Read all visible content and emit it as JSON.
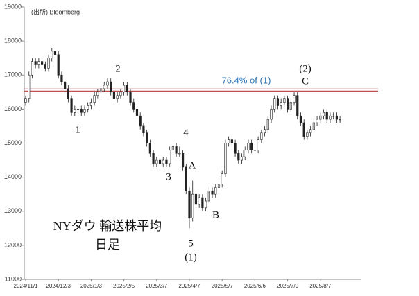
{
  "chart_data": {
    "type": "candlestick",
    "title": "NYダウ 輸送株平均",
    "subtitle": "日足",
    "source": "(出所) Bloomberg",
    "categories": [
      "2024/11/1",
      null,
      null,
      null,
      null,
      null,
      null,
      null,
      null,
      null,
      "2024/12/3",
      null,
      null,
      null,
      null,
      null,
      null,
      null,
      null,
      null,
      "2025/1/3",
      null,
      null,
      null,
      null,
      null,
      null,
      null,
      null,
      null,
      "2025/2/5",
      null,
      null,
      null,
      null,
      null,
      null,
      null,
      null,
      null,
      "2025/3/7",
      null,
      null,
      null,
      null,
      null,
      null,
      null,
      null,
      null,
      "2025/4/7",
      null,
      null,
      null,
      null,
      null,
      null,
      null,
      null,
      null,
      "2025/5/7",
      null,
      null,
      null,
      null,
      null,
      null,
      null,
      null,
      null,
      "2025/6/6",
      null,
      null,
      null,
      null,
      null,
      null,
      null,
      null,
      null,
      "2025/7/9",
      null,
      null,
      null,
      null,
      null,
      null,
      null,
      null,
      null,
      "2025/8/7",
      null,
      null,
      null,
      null,
      null,
      null
    ],
    "open": [
      16200,
      16300,
      17000,
      17400,
      17300,
      17400,
      17300,
      17200,
      17500,
      17700,
      17600,
      17000,
      16800,
      16600,
      16300,
      15900,
      16000,
      16000,
      15900,
      16000,
      16100,
      16200,
      16400,
      16500,
      16600,
      16700,
      16800,
      16500,
      16300,
      16400,
      16500,
      16700,
      16500,
      16200,
      16000,
      15800,
      15500,
      15300,
      15000,
      14700,
      14400,
      14500,
      14400,
      14500,
      14400,
      14800,
      14900,
      14700,
      14700,
      14300,
      13600,
      12800,
      13500,
      13200,
      13400,
      13100,
      13300,
      13600,
      13500,
      13700,
      13800,
      14100,
      15000,
      15100,
      15000,
      14700,
      14500,
      14600,
      14800,
      15000,
      14800,
      14800,
      15100,
      15300,
      15400,
      15700,
      16000,
      16300,
      16100,
      16200,
      16300,
      16000,
      16200,
      16400,
      15800,
      15600,
      15200,
      15300,
      15400,
      15600,
      15700,
      15800,
      15900,
      15700,
      15800,
      15800,
      15700
    ],
    "high": [
      16400,
      17100,
      17500,
      17500,
      17500,
      17500,
      17400,
      17600,
      17800,
      17800,
      17700,
      17100,
      16900,
      16700,
      16400,
      16100,
      16100,
      16100,
      16100,
      16200,
      16300,
      16500,
      16600,
      16700,
      16800,
      16900,
      16900,
      16600,
      16500,
      16600,
      16800,
      16800,
      16600,
      16300,
      16100,
      15900,
      15600,
      15400,
      15100,
      14800,
      14600,
      14600,
      14600,
      14600,
      14900,
      15000,
      15000,
      14900,
      14800,
      14400,
      13700,
      13900,
      13600,
      13500,
      13500,
      13400,
      13700,
      13700,
      13800,
      13900,
      14200,
      15100,
      15200,
      15200,
      15100,
      14800,
      14700,
      14900,
      15100,
      15100,
      14900,
      15200,
      15400,
      15500,
      15800,
      16100,
      16400,
      16400,
      16300,
      16400,
      16400,
      16300,
      16500,
      16500,
      15900,
      15700,
      15400,
      15500,
      15700,
      15800,
      15900,
      16000,
      16000,
      15900,
      15900,
      15900,
      15800
    ],
    "low": [
      16100,
      16200,
      16900,
      17200,
      17200,
      17200,
      17100,
      17100,
      17400,
      17500,
      16900,
      16700,
      16500,
      16200,
      15800,
      15800,
      15900,
      15800,
      15800,
      15900,
      16000,
      16100,
      16300,
      16400,
      16500,
      16600,
      16400,
      16200,
      16200,
      16300,
      16400,
      16400,
      16100,
      15900,
      15700,
      15400,
      15200,
      14900,
      14600,
      14300,
      14300,
      14300,
      14300,
      14300,
      14300,
      14700,
      14600,
      14600,
      14200,
      13500,
      12500,
      12700,
      13100,
      13100,
      13000,
      13000,
      13200,
      13400,
      13400,
      13600,
      13700,
      14000,
      14900,
      14900,
      14600,
      14400,
      14400,
      14500,
      14700,
      14700,
      14700,
      14700,
      15000,
      15200,
      15300,
      15600,
      15900,
      16000,
      16000,
      16100,
      15900,
      15900,
      16100,
      15700,
      15500,
      15100,
      15100,
      15200,
      15300,
      15500,
      15600,
      15700,
      15600,
      15600,
      15700,
      15600,
      15600
    ],
    "close": [
      16300,
      17000,
      17400,
      17300,
      17400,
      17300,
      17200,
      17500,
      17700,
      17600,
      17000,
      16800,
      16600,
      16300,
      15900,
      16000,
      16000,
      15900,
      16000,
      16100,
      16200,
      16400,
      16500,
      16600,
      16700,
      16800,
      16500,
      16300,
      16400,
      16500,
      16700,
      16500,
      16200,
      16000,
      15800,
      15500,
      15300,
      15000,
      14700,
      14400,
      14500,
      14400,
      14500,
      14400,
      14800,
      14900,
      14700,
      14700,
      14300,
      13600,
      12800,
      13500,
      13200,
      13400,
      13100,
      13300,
      13600,
      13500,
      13700,
      13800,
      14100,
      15000,
      15100,
      15000,
      14700,
      14500,
      14600,
      14800,
      15000,
      14800,
      14800,
      15100,
      15300,
      15400,
      15700,
      16000,
      16300,
      16100,
      16200,
      16300,
      16000,
      16200,
      16400,
      15800,
      15600,
      15200,
      15300,
      15400,
      15600,
      15700,
      15800,
      15900,
      15700,
      15800,
      15800,
      15700,
      15700
    ],
    "color": "#222222",
    "ylim": [
      11000,
      19000
    ],
    "yticks": [
      11000,
      12000,
      13000,
      14000,
      15000,
      16000,
      17000,
      18000,
      19000
    ],
    "grid": false,
    "hline": {
      "value": 16560,
      "label": "76.4% of (1)",
      "color": "#c0504d",
      "label_color": "#2e75b6"
    },
    "annotations": [
      "1",
      "2",
      "3",
      "4",
      "5",
      "(1)",
      "A",
      "B",
      "(2)",
      "C"
    ]
  }
}
